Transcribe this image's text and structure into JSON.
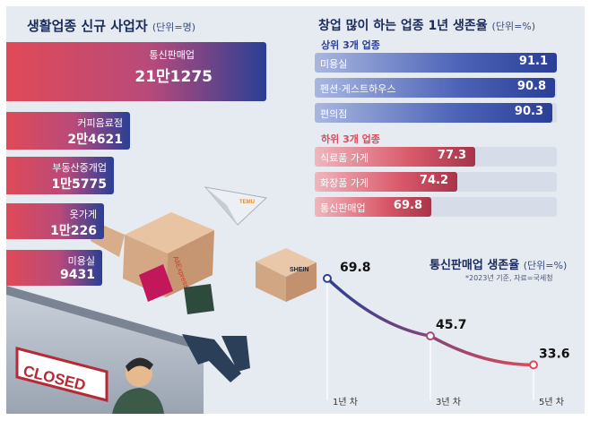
{
  "left_title": "생활업종 신규 사업자",
  "left_unit": "(단위=명)",
  "right_title": "창업 많이 하는 업종 1년 생존율",
  "right_unit": "(단위=%)",
  "top3_title": "상위 3개 업종",
  "bottom3_title": "하위 3개 업종",
  "line_title": "통신판매업 생존율",
  "line_unit": "(단위=%)",
  "line_note": "*2023년 기준, 자료=국세청",
  "illustration": {
    "closed_sign": "CLOSED",
    "box1_brand": "AliExpress",
    "box2_brand": "SHEIN",
    "plane_brand": "TEMU"
  },
  "colors": {
    "blue": "#2a3f95",
    "red": "#e04a58",
    "panel": "#e6ebf2"
  },
  "chart_data": [
    {
      "type": "bar",
      "title": "생활업종 신규 사업자",
      "unit": "단위=명",
      "categories": [
        "통신판매업",
        "커피음료점",
        "부동산중개업",
        "옷가게",
        "미용실"
      ],
      "value_labels": [
        "21만1275",
        "2만4621",
        "1만5775",
        "1만226",
        "9431"
      ],
      "values": [
        211275,
        24621,
        15775,
        10226,
        9431
      ]
    },
    {
      "type": "bar",
      "title": "창업 많이 하는 업종 1년 생존율",
      "unit": "단위=%",
      "groups": [
        {
          "name": "상위 3개 업종",
          "categories": [
            "미용실",
            "펜션·게스트하우스",
            "편의점"
          ],
          "values": [
            91.1,
            90.8,
            90.3
          ]
        },
        {
          "name": "하위 3개 업종",
          "categories": [
            "식료품 가게",
            "화장품 가게",
            "통신판매업"
          ],
          "values": [
            77.3,
            74.2,
            69.8
          ]
        }
      ]
    },
    {
      "type": "line",
      "title": "통신판매업 생존율",
      "unit": "단위=%",
      "x": [
        "1년 차",
        "3년 차",
        "5년 차"
      ],
      "values": [
        69.8,
        45.7,
        33.6
      ]
    }
  ]
}
